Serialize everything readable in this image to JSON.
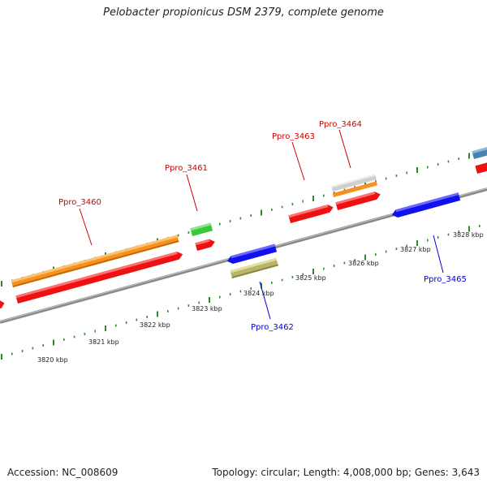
{
  "title": "Pelobacter propionicus DSM 2379, complete genome",
  "footer": {
    "accession": "Accession: NC_008609",
    "summary": "Topology: circular; Length: 4,008,000 bp; Genes: 3,643"
  },
  "colors": {
    "backbone": "#8a8a8a",
    "tick": "#2a8a2a",
    "forward_label": "#cc0000",
    "reverse_label": "#0000cc",
    "orange": "#f7921e",
    "red": "#ee1111",
    "green": "#3ac83a",
    "blue": "#1111ee",
    "olive": "#b9b46a",
    "silver": "#cfcfcf",
    "steelblue": "#4682b4"
  },
  "scale_labels": [
    "3820 kbp",
    "3821 kbp",
    "3822 kbp",
    "3823 kbp",
    "3824 kbp",
    "3825 kbp",
    "3826 kbp",
    "3827 kbp",
    "3828 kbp"
  ],
  "gene_labels": [
    {
      "text": "Ppro_3460",
      "strand": "forward"
    },
    {
      "text": "Ppro_3461",
      "strand": "forward"
    },
    {
      "text": "Ppro_3463",
      "strand": "forward"
    },
    {
      "text": "Ppro_3464",
      "strand": "forward"
    },
    {
      "text": "Ppro_3462",
      "strand": "reverse"
    },
    {
      "text": "Ppro_3465",
      "strand": "reverse"
    }
  ]
}
